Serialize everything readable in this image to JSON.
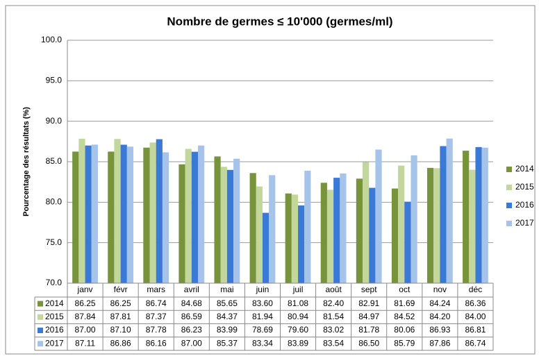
{
  "chart_data": {
    "type": "bar",
    "title": "Nombre de germes ≤ 10'000 (germes/ml)",
    "y_label": "Pourcentage des résultats (%)",
    "categories": [
      "janv",
      "févr",
      "mars",
      "avril",
      "mai",
      "juin",
      "juil",
      "août",
      "sept",
      "oct",
      "nov",
      "déc"
    ],
    "series": [
      {
        "name": "2014",
        "color": "#77933c",
        "values": [
          86.25,
          86.25,
          86.74,
          84.68,
          85.65,
          83.6,
          81.08,
          82.4,
          82.91,
          81.69,
          84.24,
          86.36
        ],
        "value_labels": [
          "86.25",
          "86.25",
          "86.74",
          "84.68",
          "85.65",
          "83.60",
          "81.08",
          "82.40",
          "82.91",
          "81.69",
          "84.24",
          "86.36"
        ]
      },
      {
        "name": "2015",
        "color": "#c3d69b",
        "values": [
          87.84,
          87.81,
          87.37,
          86.59,
          84.37,
          81.94,
          80.94,
          81.54,
          84.97,
          84.52,
          84.2,
          84.0
        ],
        "value_labels": [
          "87.84",
          "87.81",
          "87.37",
          "86.59",
          "84.37",
          "81.94",
          "80.94",
          "81.54",
          "84.97",
          "84.52",
          "84.20",
          "84.00"
        ]
      },
      {
        "name": "2016",
        "color": "#3a7ad6",
        "values": [
          87.0,
          87.1,
          87.78,
          86.23,
          83.99,
          78.69,
          79.6,
          83.02,
          81.78,
          80.06,
          86.93,
          86.81
        ],
        "value_labels": [
          "87.00",
          "87.10",
          "87.78",
          "86.23",
          "83.99",
          "78.69",
          "79.60",
          "83.02",
          "81.78",
          "80.06",
          "86.93",
          "86.81"
        ]
      },
      {
        "name": "2017",
        "color": "#a6c3ea",
        "values": [
          87.11,
          86.86,
          86.16,
          87.0,
          85.37,
          83.34,
          83.89,
          83.54,
          86.5,
          85.79,
          87.86,
          86.74
        ],
        "value_labels": [
          "87.11",
          "86.86",
          "86.16",
          "87.00",
          "85.37",
          "83.34",
          "83.89",
          "83.54",
          "86.50",
          "85.79",
          "87.86",
          "86.74"
        ]
      }
    ],
    "ylim": [
      70,
      100
    ],
    "yticks": [
      {
        "value": 70,
        "label": "70.0"
      },
      {
        "value": 75,
        "label": "75.0"
      },
      {
        "value": 80,
        "label": "80.0"
      },
      {
        "value": 85,
        "label": "85.0"
      },
      {
        "value": 90,
        "label": "90.0"
      },
      {
        "value": 95,
        "label": "95.0"
      },
      {
        "value": 100,
        "label": "100.0"
      }
    ],
    "grid": true,
    "legend": "right"
  }
}
